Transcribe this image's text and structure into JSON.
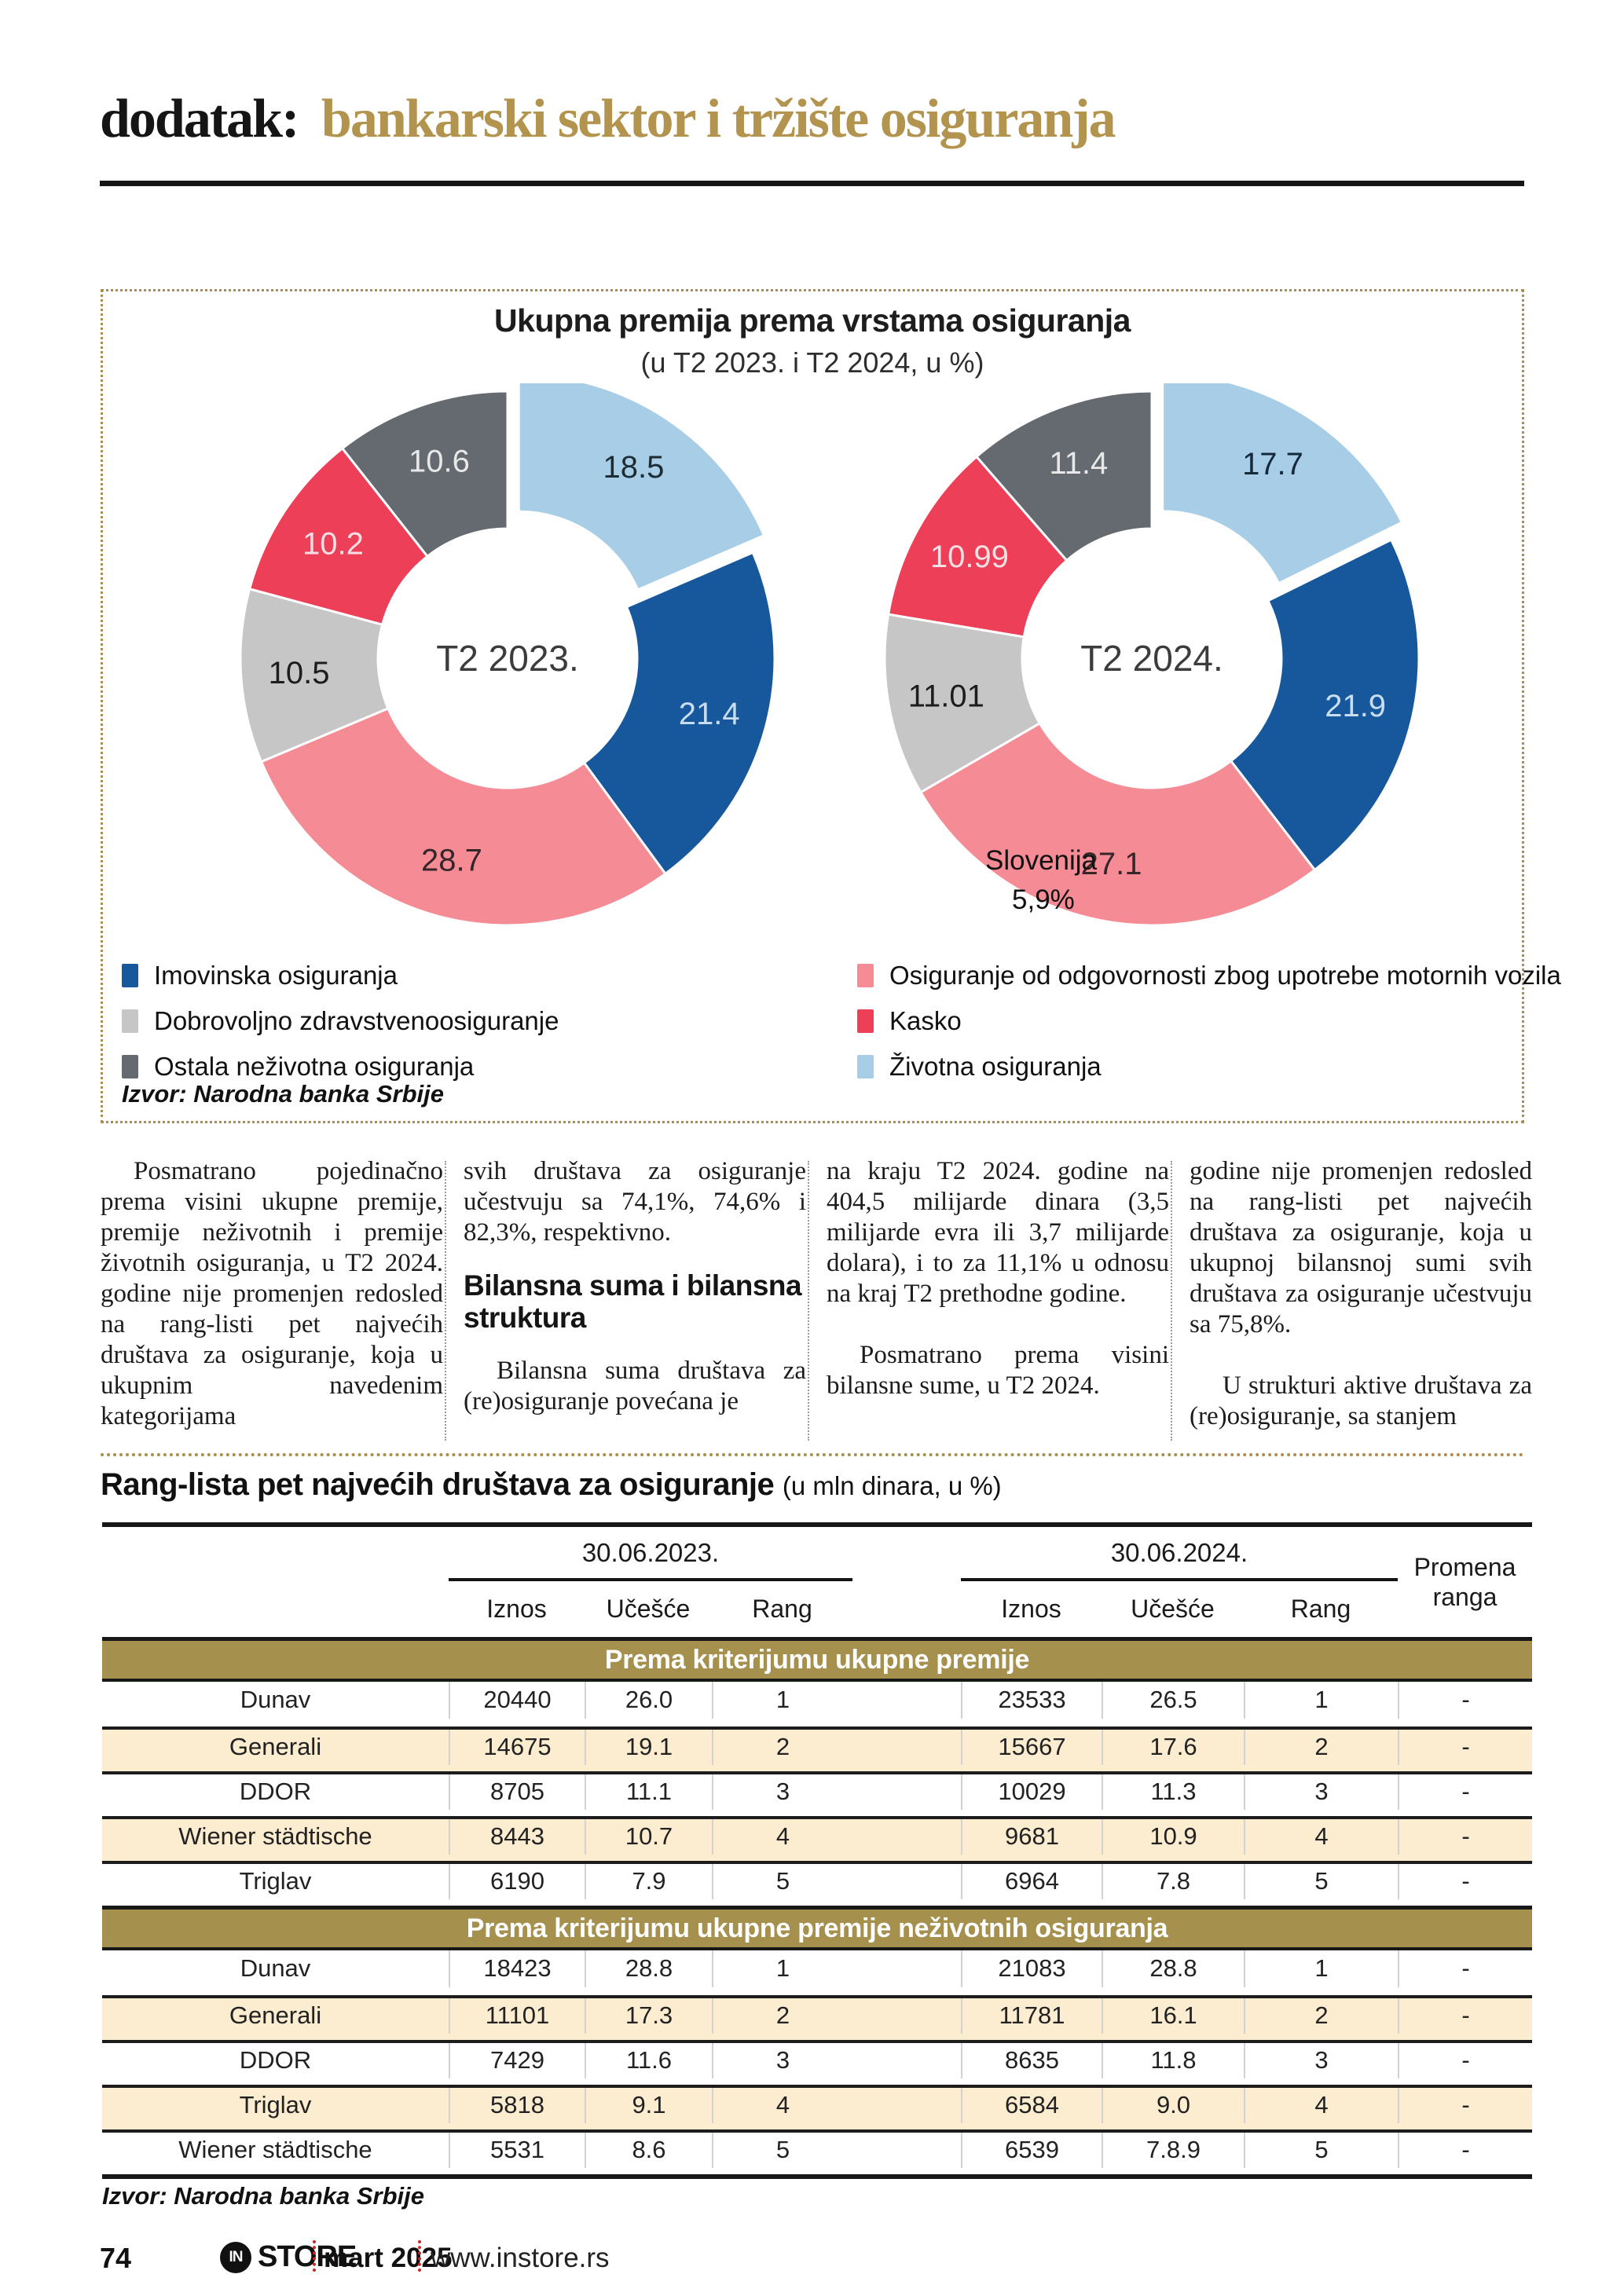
{
  "header": {
    "prefix": "dodatak:",
    "title": "bankarski sektor i tržište osiguranja"
  },
  "chart_box": {
    "title": "Ukupna premija prema vrstama osiguranja",
    "subtitle": "(u T2 2023. i T2 2024, u %)",
    "source": "Izvor: Narodna banka Srbije",
    "legend_left": [
      {
        "label": "Imovinska osiguranja",
        "color": "#17589d"
      },
      {
        "label": "Dobrovoljno zdravstvenoosiguranje",
        "color": "#c6c6c6"
      },
      {
        "label": "Ostala neživotna osiguranja",
        "color": "#646a70"
      }
    ],
    "legend_right": [
      {
        "label": "Osiguranje od odgovornosti zbog upotrebe motornih vozila",
        "color": "#f58b94"
      },
      {
        "label": "Kasko",
        "color": "#ed4058"
      },
      {
        "label": "Životna osiguranja",
        "color": "#a8cee7"
      }
    ]
  },
  "chart_data": [
    {
      "type": "pie",
      "subtype": "donut",
      "center_label": "T2 2023.",
      "slices": [
        {
          "label": "Životna osiguranja",
          "value": 18.5,
          "display": "18.5",
          "color": "#a8cee7",
          "label_color": "#1d2b33",
          "exploded": true
        },
        {
          "label": "Imovinska osiguranja",
          "value": 21.4,
          "display": "21.4",
          "color": "#17589d",
          "label_color": "#c8ddf0"
        },
        {
          "label": "Osiguranje od odgovornosti zbog upotrebe motornih vozila",
          "value": 28.7,
          "display": "28.7",
          "color": "#f58b94",
          "label_color": "#35262a"
        },
        {
          "label": "Dobrovoljno zdravstvenoosiguranje",
          "value": 10.5,
          "display": "10.5",
          "color": "#c6c6c6",
          "label_color": "#1d1d1d"
        },
        {
          "label": "Kasko",
          "value": 10.2,
          "display": "10.2",
          "color": "#ed4058",
          "label_color": "#f6e0e4"
        },
        {
          "label": "Ostala neživotna osiguranja",
          "value": 10.6,
          "display": "10.6",
          "color": "#646a70",
          "label_color": "#e8e8e8"
        }
      ]
    },
    {
      "type": "pie",
      "subtype": "donut",
      "center_label": "T2 2024.",
      "annotation": {
        "line1": "Slovenija",
        "line2": "5,9%"
      },
      "slices": [
        {
          "label": "Životna osiguranja",
          "value": 17.7,
          "display": "17.7",
          "color": "#a8cee7",
          "label_color": "#14293a",
          "exploded": true
        },
        {
          "label": "Imovinska osiguranja",
          "value": 21.9,
          "display": "21.9",
          "color": "#17589d",
          "label_color": "#c8ddf0"
        },
        {
          "label": "Osiguranje od odgovornosti zbog upotrebe motornih vozila",
          "value": 27.1,
          "display": "27.1",
          "color": "#f58b94",
          "label_color": "#35262a"
        },
        {
          "label": "Dobrovoljno zdravstvenoosiguranje",
          "value": 11.01,
          "display": "11.01",
          "color": "#c6c6c6",
          "label_color": "#1d1d1d"
        },
        {
          "label": "Kasko",
          "value": 10.99,
          "display": "10.99",
          "color": "#ed4058",
          "label_color": "#f6e0e4"
        },
        {
          "label": "Ostala neživotna osiguranja",
          "value": 11.4,
          "display": "11.4",
          "color": "#646a70",
          "label_color": "#e8e8e8"
        }
      ]
    }
  ],
  "body": {
    "col1": "Posmatrano pojedinačno prema visini ukupne premije, premije neživotnih i premije životnih osiguranja, u T2 2024. godine nije promenjen redosled na rang-listi pet najvećih društava za osiguranje, koja u ukupnim navedenim kategorijama",
    "col2_p1": "svih društava za osiguranje učestvuju sa 74,1%, 74,6% i 82,3%, respektivno.",
    "col2_heading": "Bilansna suma i bilansna struktura",
    "col2_p2": "Bilansna suma društava za (re)osiguranje povećana je",
    "col3_p1": "na kraju T2 2024. godine na 404,5 milijarde dinara (3,5 milijarde evra ili 3,7 milijarde dolara), i to za 11,1% u odnosu na kraj T2 prethodne godine.",
    "col3_p2": "Posmatrano prema visini bilansne sume, u T2 2024.",
    "col4_p1": "godine nije promenjen redosled na rang-listi pet najvećih društava za osiguranje, koja u ukupnoj bilansnoj sumi svih društava za osiguranje učestvuju sa 75,8%.",
    "col4_p2": "U strukturi aktive društava za (re)osiguranje, sa stanjem"
  },
  "table": {
    "title": "Rang-lista pet najvećih društava za osiguranje",
    "title_note": "(u mln dinara, u %)",
    "group_headers": [
      "30.06.2023.",
      "30.06.2024."
    ],
    "sub_headers": [
      "Iznos",
      "Učešće",
      "Rang"
    ],
    "change_header": "Promena ranga",
    "source": "Izvor: Narodna banka Srbije",
    "sections": [
      {
        "header": "Prema kriterijumu ukupne premije",
        "rows": [
          {
            "name": "Dunav",
            "cells": [
              "20440",
              "26.0",
              "1",
              "23533",
              "26.5",
              "1",
              "-"
            ]
          },
          {
            "name": "Generali",
            "cells": [
              "14675",
              "19.1",
              "2",
              "15667",
              "17.6",
              "2",
              "-"
            ]
          },
          {
            "name": "DDOR",
            "cells": [
              "8705",
              "11.1",
              "3",
              "10029",
              "11.3",
              "3",
              "-"
            ]
          },
          {
            "name": "Wiener städtische",
            "cells": [
              "8443",
              "10.7",
              "4",
              "9681",
              "10.9",
              "4",
              "-"
            ]
          },
          {
            "name": "Triglav",
            "cells": [
              "6190",
              "7.9",
              "5",
              "6964",
              "7.8",
              "5",
              "-"
            ]
          }
        ]
      },
      {
        "header": "Prema kriterijumu ukupne premije neživotnih osiguranja",
        "rows": [
          {
            "name": "Dunav",
            "cells": [
              "18423",
              "28.8",
              "1",
              "21083",
              "28.8",
              "1",
              "-"
            ]
          },
          {
            "name": "Generali",
            "cells": [
              "11101",
              "17.3",
              "2",
              "11781",
              "16.1",
              "2",
              "-"
            ]
          },
          {
            "name": "DDOR",
            "cells": [
              "7429",
              "11.6",
              "3",
              "8635",
              "11.8",
              "3",
              "-"
            ]
          },
          {
            "name": "Triglav",
            "cells": [
              "5818",
              "9.1",
              "4",
              "6584",
              "9.0",
              "4",
              "-"
            ]
          },
          {
            "name": "Wiener städtische",
            "cells": [
              "5531",
              "8.6",
              "5",
              "6539",
              "7.8.9",
              "5",
              "-"
            ]
          }
        ]
      }
    ]
  },
  "footer": {
    "page_number": "74",
    "logo_in": "IN",
    "logo_store": "STORE",
    "issue": "mart 2025",
    "website": "www.instore.rs"
  },
  "colors": {
    "accent_gold": "#a98f4d",
    "title_gold": "#b3944f",
    "band_gold": "#a6904e",
    "row_cream": "#fcecd0",
    "separator_red": "#c32b23"
  }
}
